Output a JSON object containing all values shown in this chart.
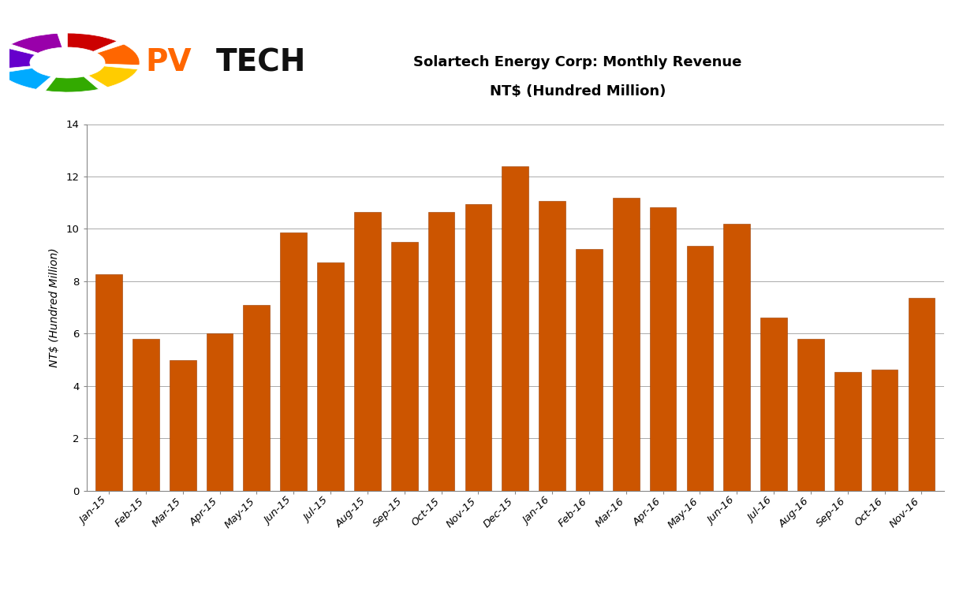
{
  "categories": [
    "Jan-15",
    "Feb-15",
    "Mar-15",
    "Apr-15",
    "May-15",
    "Jun-15",
    "Jul-15",
    "Aug-15",
    "Sep-15",
    "Oct-15",
    "Nov-15",
    "Dec-15",
    "Jan-16",
    "Feb-16",
    "Mar-16",
    "Apr-16",
    "May-16",
    "Jun-16",
    "Jul-16",
    "Aug-16",
    "Sep-16",
    "Oct-16",
    "Nov-16"
  ],
  "values": [
    8.27,
    5.81,
    4.99,
    6.0,
    7.1,
    9.87,
    8.73,
    10.63,
    9.51,
    10.63,
    10.93,
    12.38,
    11.07,
    9.23,
    11.17,
    10.83,
    9.35,
    10.19,
    6.62,
    5.81,
    4.52,
    4.61,
    7.37
  ],
  "bar_color": "#CC5500",
  "bar_edge_color": "#993D00",
  "title_line1": "Solartech Energy Corp: Monthly Revenue",
  "title_line2": "NT$ (Hundred Million)",
  "ylabel": "NT$ (Hundred Million)",
  "ylim": [
    0,
    14
  ],
  "yticks": [
    0,
    2,
    4,
    6,
    8,
    10,
    12,
    14
  ],
  "grid_color": "#AAAAAA",
  "background_color": "#FFFFFF",
  "title_fontsize": 13,
  "axis_fontsize": 10,
  "tick_fontsize": 9.5,
  "logo_ring_colors": [
    "#CC0000",
    "#FF6600",
    "#FFCC00",
    "#33AA00",
    "#00AAFF",
    "#6600CC",
    "#9900AA"
  ],
  "logo_pv_color": "#FF6600",
  "logo_tech_color": "#111111"
}
